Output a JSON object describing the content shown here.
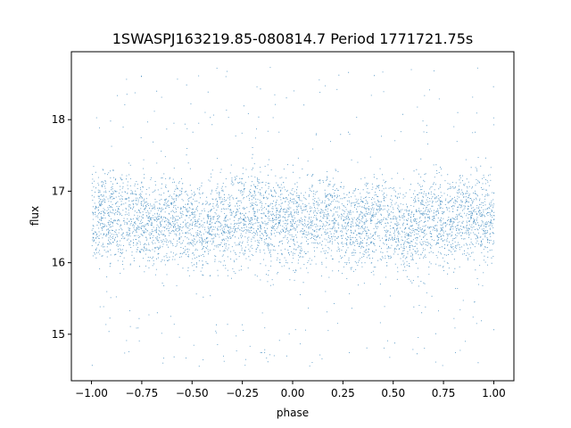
{
  "chart_data": {
    "type": "scatter",
    "title": "1SWASPJ163219.85-080814.7 Period 1771721.75s",
    "xlabel": "phase",
    "ylabel": "flux",
    "xlim": [
      -1.1,
      1.1
    ],
    "ylim": [
      14.35,
      18.95
    ],
    "x_ticks": [
      -1.0,
      -0.75,
      -0.5,
      -0.25,
      0.0,
      0.25,
      0.5,
      0.75,
      1.0
    ],
    "x_tick_labels": [
      "−1.00",
      "−0.75",
      "−0.50",
      "−0.25",
      "0.00",
      "0.25",
      "0.50",
      "0.75",
      "1.00"
    ],
    "y_ticks": [
      15,
      16,
      17,
      18
    ],
    "y_tick_labels": [
      "15",
      "16",
      "17",
      "18"
    ],
    "grid": false,
    "marker_color": "#1f77b4",
    "series": [
      {
        "x_range": [
          -1.0,
          1.0
        ],
        "band_center": 16.6,
        "band_halfwidth": 0.55,
        "min": 14.55,
        "max": 18.75,
        "x": [
          -1.0,
          -0.9,
          -0.8,
          -0.7,
          -0.6,
          -0.5,
          -0.45,
          -0.4,
          -0.3,
          -0.2,
          -0.1,
          0.0,
          0.1,
          0.2,
          0.3,
          0.4,
          0.5,
          0.55,
          0.6,
          0.7,
          0.8,
          0.9,
          1.0
        ],
        "y_median": [
          16.65,
          16.6,
          16.65,
          16.55,
          16.6,
          16.55,
          16.4,
          16.55,
          16.6,
          16.65,
          16.6,
          16.55,
          16.6,
          16.65,
          16.5,
          16.6,
          16.55,
          16.4,
          16.55,
          16.65,
          16.6,
          16.7,
          16.6
        ]
      }
    ]
  }
}
